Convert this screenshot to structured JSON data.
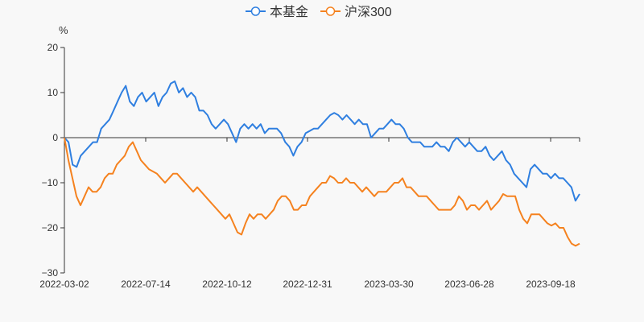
{
  "chart_data": {
    "type": "line",
    "unit_label": "%",
    "ylim": [
      -30,
      20
    ],
    "y_ticks": [
      "20",
      "10",
      "0",
      "−10",
      "−20",
      "−30"
    ],
    "y_tick_values": [
      20,
      10,
      0,
      -10,
      -20,
      -30
    ],
    "x_ticks": [
      "2022-03-02",
      "2022-07-14",
      "2022-10-12",
      "2022-12-31",
      "2023-03-30",
      "2023-06-28",
      "2023-09-18"
    ],
    "x_tick_positions": [
      0,
      0.1578,
      0.3156,
      0.4719,
      0.6297,
      0.7859,
      0.9438
    ],
    "grid": false,
    "legend_position": "top-center",
    "series": [
      {
        "name": "本基金",
        "color": "#2f7fe0",
        "values": [
          0,
          -1,
          -6,
          -6.5,
          -4,
          -3,
          -2,
          -1,
          -1,
          2,
          3,
          4,
          6,
          8,
          10,
          11.5,
          8,
          7,
          9,
          10,
          8,
          9,
          10,
          7,
          9,
          10,
          12,
          12.5,
          10,
          11,
          9,
          10,
          9,
          6,
          6,
          5,
          3,
          2,
          3,
          4,
          3,
          1,
          -1,
          2,
          3,
          2,
          3,
          2,
          3,
          1,
          2,
          2,
          2,
          1,
          -1,
          -2,
          -4,
          -2,
          -1,
          1,
          1.5,
          2,
          2,
          3,
          4,
          5,
          5.5,
          5,
          4,
          5,
          4,
          3,
          4,
          3,
          3,
          0,
          1,
          2,
          2,
          3,
          4,
          3,
          3,
          2,
          0,
          -1,
          -1,
          -1,
          -2,
          -2,
          -2,
          -1,
          -2,
          -2,
          -3,
          -1,
          0,
          -1,
          -2,
          -1,
          -2,
          -3,
          -3,
          -2,
          -4,
          -5,
          -4,
          -3,
          -5,
          -6,
          -8,
          -9,
          -10,
          -11,
          -7,
          -6,
          -7,
          -8,
          -8,
          -9,
          -8,
          -9,
          -9,
          -10,
          -11,
          -14,
          -12.5
        ]
      },
      {
        "name": "沪深300",
        "color": "#f5821f",
        "values": [
          0,
          -5,
          -9,
          -13,
          -15,
          -13,
          -11,
          -12,
          -12,
          -11,
          -9,
          -8,
          -8,
          -6,
          -5,
          -4,
          -2,
          -1,
          -3,
          -5,
          -6,
          -7,
          -7.5,
          -8,
          -9,
          -10,
          -9,
          -8,
          -8,
          -9,
          -10,
          -11,
          -12,
          -11,
          -12,
          -13,
          -14,
          -15,
          -16,
          -17,
          -18,
          -17,
          -19,
          -21,
          -21.5,
          -19,
          -17,
          -18,
          -17,
          -17,
          -18,
          -17,
          -16,
          -14,
          -13,
          -13,
          -14,
          -16,
          -16,
          -15,
          -15,
          -13,
          -12,
          -11,
          -10,
          -10,
          -8.5,
          -9,
          -10,
          -10,
          -9,
          -10,
          -10,
          -11,
          -12,
          -11,
          -12,
          -13,
          -12,
          -12,
          -12,
          -11,
          -10,
          -10,
          -9,
          -11,
          -11,
          -12,
          -13,
          -13,
          -13,
          -14,
          -15,
          -16,
          -16,
          -16,
          -16,
          -15,
          -13,
          -14,
          -16,
          -15,
          -15,
          -16,
          -15,
          -14,
          -16,
          -15,
          -14,
          -12.5,
          -13,
          -13,
          -13,
          -16,
          -18,
          -19,
          -17,
          -17,
          -17,
          -18,
          -19,
          -19.5,
          -19,
          -20,
          -20,
          -22,
          -23.5,
          -24,
          -23.5
        ]
      }
    ]
  }
}
